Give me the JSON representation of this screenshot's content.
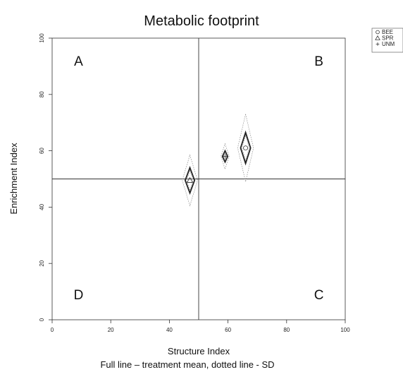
{
  "chart_data": {
    "type": "scatter",
    "title": "Metabolic footprint",
    "xlabel": "Structure Index",
    "ylabel": "Enrichment Index",
    "caption": "Full line – treatment mean, dotted line - SD",
    "xlim": [
      0,
      100
    ],
    "ylim": [
      0,
      100
    ],
    "x_ticks": [
      0,
      20,
      40,
      60,
      80,
      100
    ],
    "y_ticks": [
      0,
      20,
      40,
      60,
      80,
      100
    ],
    "grid": false,
    "reference_lines": {
      "x": 50,
      "y": 50
    },
    "quadrant_labels": [
      {
        "label": "A",
        "x": 9,
        "y": 92
      },
      {
        "label": "B",
        "x": 91,
        "y": 92
      },
      {
        "label": "C",
        "x": 91,
        "y": 9
      },
      {
        "label": "D",
        "x": 9,
        "y": 9
      }
    ],
    "legend_position": "outside-top-right",
    "series": [
      {
        "name": "BEE",
        "marker": "circle",
        "x": 66,
        "y": 61,
        "mean_half_x": 1.7,
        "mean_half_y": 5.5,
        "sd_half_x": 1.0,
        "sd_half_y": 12
      },
      {
        "name": "SPR",
        "marker": "triangle",
        "x": 47,
        "y": 49.5,
        "mean_half_x": 1.6,
        "mean_half_y": 4.5,
        "sd_half_x": 1.0,
        "sd_half_y": 9
      },
      {
        "name": "UNM",
        "marker": "plus",
        "x": 59,
        "y": 58,
        "mean_half_x": 0.9,
        "mean_half_y": 2.0,
        "sd_half_x": 0.5,
        "sd_half_y": 4.5
      }
    ]
  }
}
